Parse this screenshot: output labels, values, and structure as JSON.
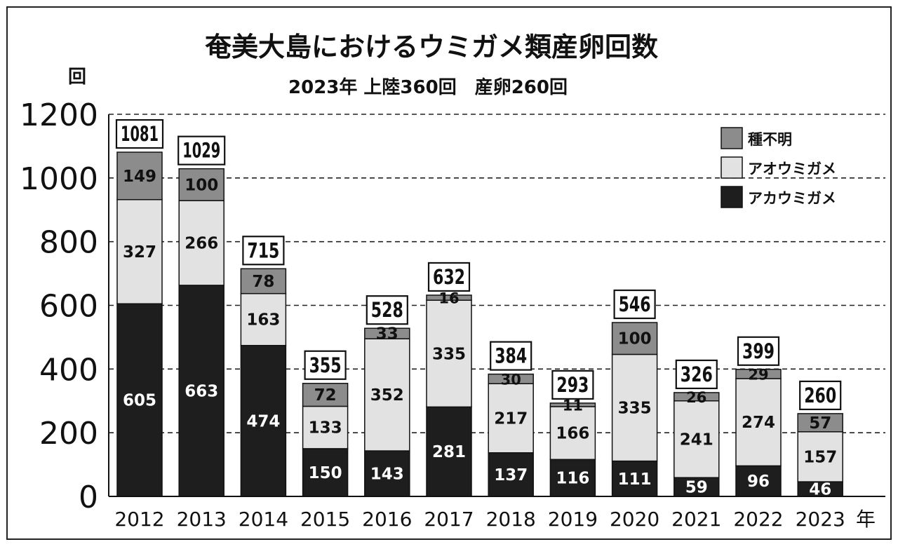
{
  "chart_data": {
    "type": "bar",
    "stacked": true,
    "title": "奄美大島におけるウミガメ類産卵回数",
    "subtitle": "2023年 上陸360回　産卵260回",
    "ylabel": "回",
    "xlabel": "年",
    "ylim": [
      0,
      1200
    ],
    "yticks": [
      "0",
      "200",
      "400",
      "600",
      "800",
      "1000",
      "1200"
    ],
    "grid": true,
    "legend_position": "top-right",
    "categories": [
      "2012",
      "2013",
      "2014",
      "2015",
      "2016",
      "2017",
      "2018",
      "2019",
      "2020",
      "2021",
      "2022",
      "2023"
    ],
    "series": [
      {
        "name": "アカウミガメ",
        "color": "#1e1e1e",
        "label_color": "#ffffff",
        "values": [
          605,
          663,
          474,
          150,
          143,
          281,
          137,
          116,
          111,
          59,
          96,
          46
        ]
      },
      {
        "name": "アオウミガメ",
        "color": "#e2e2e2",
        "label_color": "#111111",
        "values": [
          327,
          266,
          163,
          133,
          352,
          335,
          217,
          166,
          335,
          241,
          274,
          157
        ]
      },
      {
        "name": "種不明",
        "color": "#8c8c8c",
        "label_color": "#111111",
        "values": [
          149,
          100,
          78,
          72,
          33,
          16,
          30,
          11,
          100,
          26,
          29,
          57
        ]
      }
    ],
    "totals": [
      1081,
      1029,
      715,
      355,
      528,
      632,
      384,
      293,
      546,
      326,
      399,
      260
    ]
  }
}
